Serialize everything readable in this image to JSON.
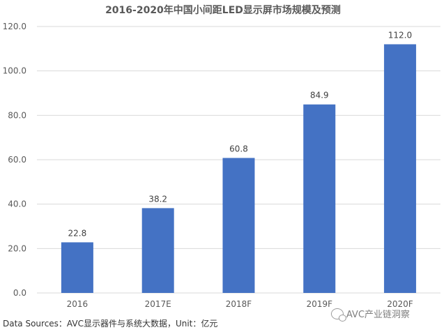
{
  "chart_data": {
    "type": "bar",
    "title": "2016-2020年中国小间距LED显示屏市场规模及预测",
    "categories": [
      "2016",
      "2017E",
      "2018F",
      "2019F",
      "2020F"
    ],
    "values": [
      22.8,
      38.2,
      60.8,
      84.9,
      112.0
    ],
    "value_labels": [
      "22.8",
      "38.2",
      "60.8",
      "84.9",
      "112.0"
    ],
    "ylim": [
      0,
      120
    ],
    "yticks": [
      "0.0",
      "20.0",
      "40.0",
      "60.0",
      "80.0",
      "100.0",
      "120.0"
    ],
    "grid": true,
    "bar_color": "#4472C4",
    "xlabel": "",
    "ylabel": ""
  },
  "source": "Data Sources：AVC显示器件与系统大数据，Unit：亿元",
  "watermark": "AVC产业链洞察",
  "colors": {
    "grid": "#d9d9d9",
    "axis_text": "#595959"
  }
}
